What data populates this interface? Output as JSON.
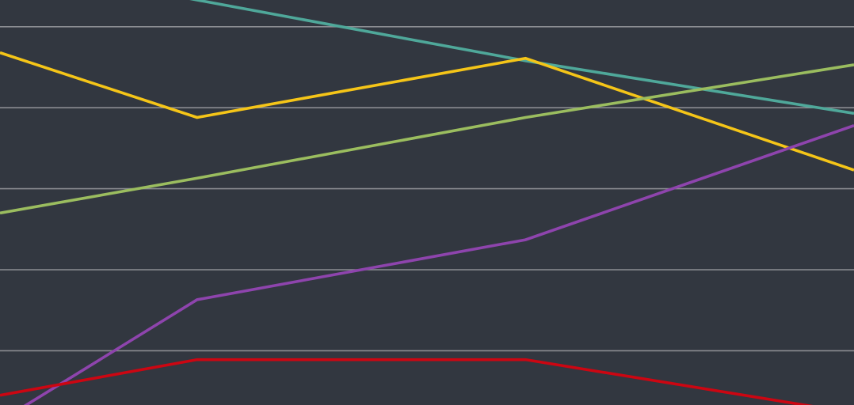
{
  "theme": {
    "background": "#323740",
    "gridline_color": "#8b8d92"
  },
  "chart_data": {
    "type": "line",
    "title": "",
    "xlabel": "",
    "ylabel": "",
    "grid": true,
    "legend": "none",
    "x": [
      -0.6,
      0,
      1,
      2
    ],
    "xlim": [
      -0.6,
      2
    ],
    "ylim": [
      0,
      5
    ],
    "gridlines_y": [
      0.67,
      1.67,
      2.67,
      3.67,
      4.67
    ],
    "series": [
      {
        "color": "#4fa89a",
        "values": [
          5.46,
          5.0,
          4.25,
          3.6
        ]
      },
      {
        "color": "#f5c518",
        "values": [
          4.35,
          3.55,
          4.28,
          2.9
        ]
      },
      {
        "color": "#9bbd5f",
        "values": [
          2.37,
          2.8,
          3.55,
          4.2
        ]
      },
      {
        "color": "#8e44ad",
        "values": [
          -0.2,
          1.3,
          2.04,
          3.45
        ]
      },
      {
        "color": "#cc0612",
        "values": [
          0.12,
          0.56,
          0.56,
          -0.1
        ]
      }
    ]
  }
}
